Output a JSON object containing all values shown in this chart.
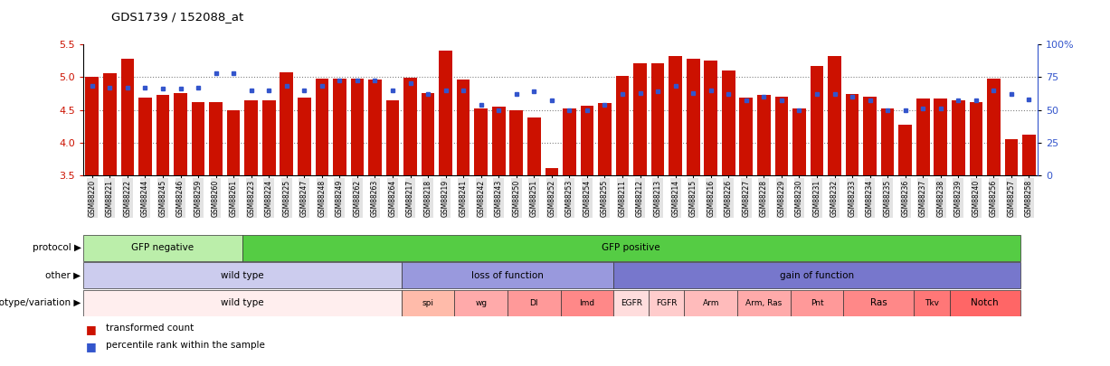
{
  "title": "GDS1739 / 152088_at",
  "samples": [
    "GSM88220",
    "GSM88221",
    "GSM88222",
    "GSM88244",
    "GSM88245",
    "GSM88246",
    "GSM88259",
    "GSM88260",
    "GSM88261",
    "GSM88223",
    "GSM88224",
    "GSM88225",
    "GSM88247",
    "GSM88248",
    "GSM88249",
    "GSM88262",
    "GSM88263",
    "GSM88264",
    "GSM88217",
    "GSM88218",
    "GSM88219",
    "GSM88241",
    "GSM88242",
    "GSM88243",
    "GSM88250",
    "GSM88251",
    "GSM88252",
    "GSM88253",
    "GSM88254",
    "GSM88255",
    "GSM88211",
    "GSM88212",
    "GSM88213",
    "GSM88214",
    "GSM88215",
    "GSM88216",
    "GSM88226",
    "GSM88227",
    "GSM88228",
    "GSM88229",
    "GSM88230",
    "GSM88231",
    "GSM88232",
    "GSM88233",
    "GSM88234",
    "GSM88235",
    "GSM88236",
    "GSM88237",
    "GSM88238",
    "GSM88239",
    "GSM88240",
    "GSM88256",
    "GSM88257",
    "GSM88258"
  ],
  "bar_values": [
    5.0,
    5.06,
    5.27,
    4.68,
    4.73,
    4.76,
    4.62,
    4.61,
    4.5,
    4.65,
    4.65,
    5.07,
    4.68,
    4.98,
    4.97,
    4.98,
    4.96,
    4.65,
    4.99,
    4.75,
    5.4,
    4.96,
    4.52,
    4.55,
    4.5,
    4.38,
    3.62,
    4.52,
    4.56,
    4.6,
    5.02,
    5.2,
    5.2,
    5.32,
    5.28,
    5.25,
    5.1,
    4.68,
    4.72,
    4.7,
    4.52,
    5.16,
    5.32,
    4.74,
    4.7,
    4.52,
    4.28,
    4.67,
    4.67,
    4.65,
    4.62,
    4.98,
    4.05,
    4.12
  ],
  "percentile_values": [
    68,
    67,
    67,
    67,
    66,
    66,
    67,
    78,
    78,
    65,
    65,
    68,
    65,
    68,
    72,
    72,
    72,
    65,
    70,
    62,
    65,
    65,
    54,
    50,
    62,
    64,
    57,
    50,
    50,
    54,
    62,
    63,
    64,
    68,
    63,
    65,
    62,
    57,
    60,
    57,
    50,
    62,
    62,
    60,
    57,
    50,
    50,
    51,
    51,
    57,
    57,
    65,
    62,
    58
  ],
  "ymin": 3.5,
  "ymax": 5.5,
  "yticks": [
    3.5,
    4.0,
    4.5,
    5.0,
    5.5
  ],
  "y2min": 0,
  "y2max": 100,
  "y2ticks": [
    0,
    25,
    50,
    75,
    100
  ],
  "y2ticklabels": [
    "0",
    "25",
    "50",
    "75",
    "100%"
  ],
  "bar_color": "#cc1100",
  "dot_color": "#3355cc",
  "protocol_groups": [
    {
      "label": "GFP negative",
      "start": 0,
      "end": 9,
      "color": "#bbeeaa"
    },
    {
      "label": "GFP positive",
      "start": 9,
      "end": 53,
      "color": "#55cc44"
    }
  ],
  "other_groups": [
    {
      "label": "wild type",
      "start": 0,
      "end": 18,
      "color": "#ccccee"
    },
    {
      "label": "loss of function",
      "start": 18,
      "end": 30,
      "color": "#9999dd"
    },
    {
      "label": "gain of function",
      "start": 30,
      "end": 53,
      "color": "#7777cc"
    }
  ],
  "genotype_groups": [
    {
      "label": "wild type",
      "start": 0,
      "end": 18,
      "color": "#ffeeee"
    },
    {
      "label": "spi",
      "start": 18,
      "end": 21,
      "color": "#ffbbaa"
    },
    {
      "label": "wg",
      "start": 21,
      "end": 24,
      "color": "#ffaaaa"
    },
    {
      "label": "Dl",
      "start": 24,
      "end": 27,
      "color": "#ff9999"
    },
    {
      "label": "Imd",
      "start": 27,
      "end": 30,
      "color": "#ff8888"
    },
    {
      "label": "EGFR",
      "start": 30,
      "end": 32,
      "color": "#ffdddd"
    },
    {
      "label": "FGFR",
      "start": 32,
      "end": 34,
      "color": "#ffcccc"
    },
    {
      "label": "Arm",
      "start": 34,
      "end": 37,
      "color": "#ffbbbb"
    },
    {
      "label": "Arm, Ras",
      "start": 37,
      "end": 40,
      "color": "#ffaaaa"
    },
    {
      "label": "Pnt",
      "start": 40,
      "end": 43,
      "color": "#ff9999"
    },
    {
      "label": "Ras",
      "start": 43,
      "end": 47,
      "color": "#ff8888"
    },
    {
      "label": "Tkv",
      "start": 47,
      "end": 49,
      "color": "#ff7777"
    },
    {
      "label": "Notch",
      "start": 49,
      "end": 53,
      "color": "#ff6666"
    }
  ],
  "row_labels": [
    "protocol",
    "other",
    "genotype/variation"
  ],
  "legend_red": "transformed count",
  "legend_blue": "percentile rank within the sample",
  "dotted_gridlines": [
    4.0,
    4.5,
    5.0
  ]
}
